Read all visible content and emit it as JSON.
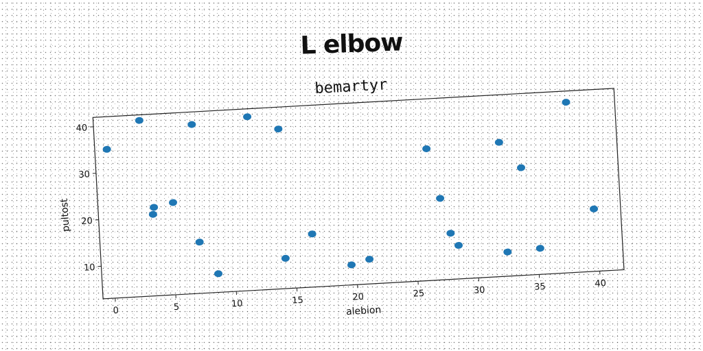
{
  "suptitle": "L elbow",
  "chart_data": {
    "type": "scatter",
    "title": "bemartyr",
    "xlabel": "alebion",
    "ylabel": "pultost",
    "xlim": [
      -1,
      42
    ],
    "ylim": [
      3,
      42
    ],
    "xticks": [
      0,
      5,
      10,
      15,
      20,
      25,
      30,
      35,
      40
    ],
    "yticks": [
      10,
      20,
      30,
      40
    ],
    "grid": false,
    "marker_color": "#1f77b4",
    "points": [
      {
        "x": 0,
        "y": 35
      },
      {
        "x": 2.8,
        "y": 40.8
      },
      {
        "x": 3.5,
        "y": 20.5
      },
      {
        "x": 3.6,
        "y": 22
      },
      {
        "x": 5.2,
        "y": 22.8
      },
      {
        "x": 7.1,
        "y": 39.3
      },
      {
        "x": 7.2,
        "y": 14
      },
      {
        "x": 8.6,
        "y": 7
      },
      {
        "x": 11.7,
        "y": 40.3
      },
      {
        "x": 14.2,
        "y": 37.3
      },
      {
        "x": 14.2,
        "y": 9.5
      },
      {
        "x": 16.5,
        "y": 14.4
      },
      {
        "x": 19.6,
        "y": 7.3
      },
      {
        "x": 21.1,
        "y": 8.3
      },
      {
        "x": 26.3,
        "y": 31.3
      },
      {
        "x": 27.2,
        "y": 20.5
      },
      {
        "x": 27.9,
        "y": 12.9
      },
      {
        "x": 28.5,
        "y": 10.2
      },
      {
        "x": 32.3,
        "y": 31.8
      },
      {
        "x": 32.5,
        "y": 8.2
      },
      {
        "x": 34,
        "y": 26.1
      },
      {
        "x": 35.2,
        "y": 8.6
      },
      {
        "x": 38,
        "y": 39.6
      },
      {
        "x": 39.8,
        "y": 16.4
      }
    ]
  }
}
